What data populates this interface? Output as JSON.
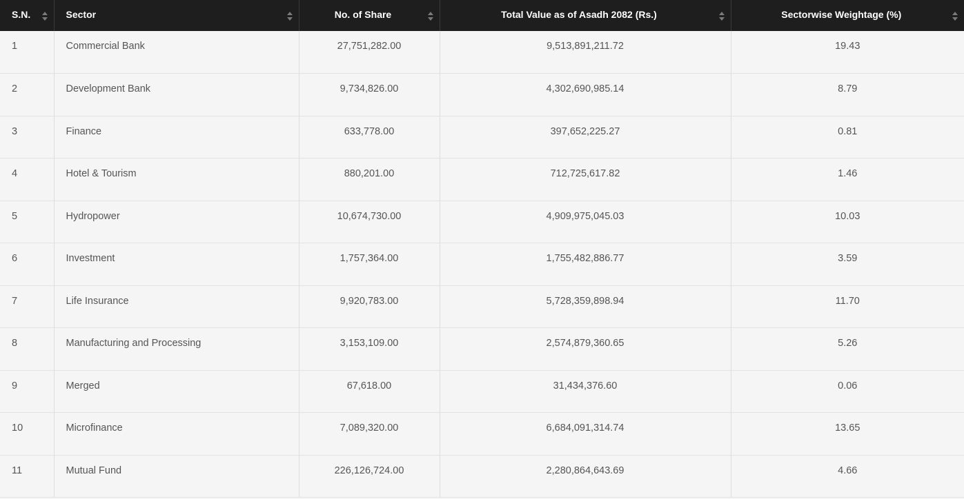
{
  "table": {
    "headers": [
      "S.N.",
      "Sector",
      "No. of Share",
      "Total Value as of Asadh 2082 (Rs.)",
      "Sectorwise Weightage (%)"
    ],
    "rows": [
      [
        "1",
        "Commercial Bank",
        "27,751,282.00",
        "9,513,891,211.72",
        "19.43"
      ],
      [
        "2",
        "Development Bank",
        "9,734,826.00",
        "4,302,690,985.14",
        "8.79"
      ],
      [
        "3",
        "Finance",
        "633,778.00",
        "397,652,225.27",
        "0.81"
      ],
      [
        "4",
        "Hotel & Tourism",
        "880,201.00",
        "712,725,617.82",
        "1.46"
      ],
      [
        "5",
        "Hydropower",
        "10,674,730.00",
        "4,909,975,045.03",
        "10.03"
      ],
      [
        "6",
        "Investment",
        "1,757,364.00",
        "1,755,482,886.77",
        "3.59"
      ],
      [
        "7",
        "Life Insurance",
        "9,920,783.00",
        "5,728,359,898.94",
        "11.70"
      ],
      [
        "8",
        "Manufacturing and Processing",
        "3,153,109.00",
        "2,574,879,360.65",
        "5.26"
      ],
      [
        "9",
        "Merged",
        "67,618.00",
        "31,434,376.60",
        "0.06"
      ],
      [
        "10",
        "Microfinance",
        "7,089,320.00",
        "6,684,091,314.74",
        "13.65"
      ],
      [
        "11",
        "Mutual Fund",
        "226,126,724.00",
        "2,280,864,643.69",
        "4.66"
      ]
    ]
  },
  "icons": {
    "sort": "sort-icon"
  },
  "colors": {
    "header_bg": "#1e1e1e",
    "header_text": "#ffffff",
    "row_bg": "#f5f5f5",
    "cell_text": "#555555"
  }
}
